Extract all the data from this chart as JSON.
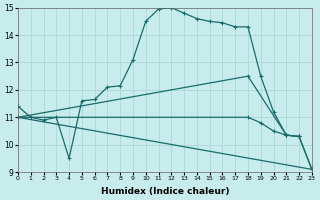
{
  "xlabel": "Humidex (Indice chaleur)",
  "xlim": [
    0,
    23
  ],
  "ylim": [
    9,
    15
  ],
  "bg_color": "#c8ecec",
  "line_color": "#1a6b6b",
  "grid_color": "#b0dada",
  "line1": {
    "x": [
      0,
      1,
      2,
      3,
      4,
      5,
      6,
      7,
      8,
      9,
      10,
      11,
      12,
      13,
      14,
      15,
      16,
      17,
      18,
      19,
      20,
      21,
      22
    ],
    "y": [
      11.4,
      11.0,
      10.9,
      11.0,
      9.5,
      11.6,
      11.65,
      12.1,
      12.15,
      13.1,
      14.5,
      14.95,
      15.0,
      14.8,
      14.6,
      14.5,
      14.45,
      14.3,
      14.3,
      12.5,
      11.2,
      10.35,
      10.3
    ]
  },
  "line2": {
    "x": [
      0,
      18,
      21,
      22,
      23
    ],
    "y": [
      11.0,
      12.5,
      10.35,
      10.3,
      9.1
    ]
  },
  "line3": {
    "x": [
      0,
      23
    ],
    "y": [
      11.0,
      9.1
    ]
  },
  "line4": {
    "x": [
      0,
      18,
      19,
      20,
      21,
      22,
      23
    ],
    "y": [
      11.0,
      11.0,
      10.8,
      10.5,
      10.35,
      10.3,
      9.1
    ]
  }
}
